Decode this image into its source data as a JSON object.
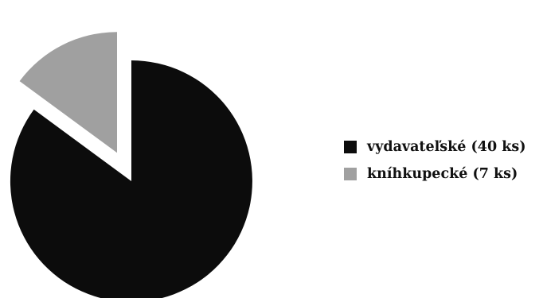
{
  "chart_data": {
    "type": "pie",
    "exploded": true,
    "start_angle_deg": 0,
    "direction": "clockwise",
    "slices": [
      {
        "label": "vydavateľské (40 ks)",
        "value": 40,
        "color": "#0c0c0c"
      },
      {
        "label": "kníhkupecké (7 ks)",
        "value": 7,
        "color": "#a0a0a0"
      }
    ],
    "legend_position": "right"
  }
}
